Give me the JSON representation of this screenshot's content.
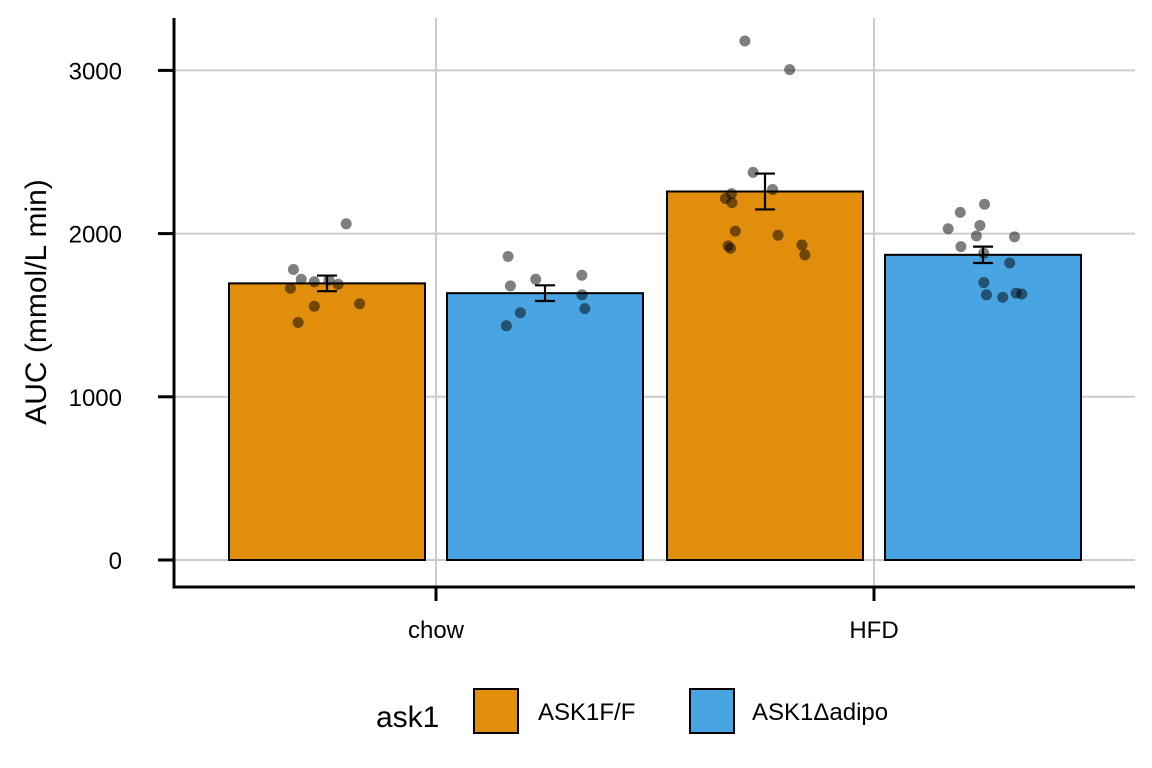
{
  "chart_data": {
    "type": "bar",
    "categories": [
      "chow",
      "HFD"
    ],
    "ylabel": "AUC (mmol/L min)",
    "xlabel": "",
    "ylim": [
      0,
      3200
    ],
    "yticks": [
      0,
      1000,
      2000,
      3000
    ],
    "grid": true,
    "legend": {
      "title": "ask1",
      "position": "bottom"
    },
    "series": [
      {
        "name": "ASK1F/F",
        "color": "#E08E0B",
        "values": [
          1695,
          2258
        ],
        "sem": [
          48,
          110
        ],
        "points": [
          [
            2060,
            1715,
            1705,
            1665,
            1720,
            1690,
            1780,
            1570,
            1555,
            1455
          ],
          [
            3180,
            3005,
            2375,
            2270,
            2245,
            2215,
            2190,
            2015,
            1990,
            1925,
            1910,
            1930,
            1870
          ]
        ]
      },
      {
        "name": "ASK1Δadipo",
        "color": "#49A4E3",
        "values": [
          1635,
          1870
        ],
        "sem": [
          48,
          50
        ],
        "points": [
          [
            1860,
            1680,
            1625,
            1540,
            1515,
            1435,
            1745,
            1720
          ],
          [
            2180,
            2130,
            2050,
            2030,
            1980,
            1985,
            1920,
            1880,
            1820,
            1700,
            1635,
            1625,
            1630,
            1610
          ]
        ]
      }
    ]
  }
}
